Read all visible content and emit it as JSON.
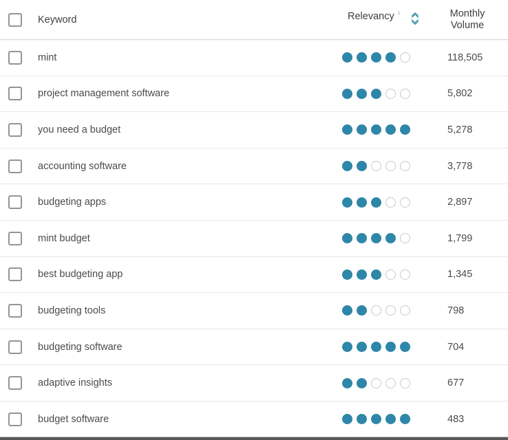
{
  "header": {
    "keyword_label": "Keyword",
    "relevancy_label": "Relevancy",
    "info_icon_glyph": "i",
    "sort_icon_name": "sort-chevrons-icon",
    "monthly_volume_line1": "Monthly",
    "monthly_volume_line2": "Volume"
  },
  "relevancy_max": 5,
  "colors": {
    "dot_filled": "#2e86a8",
    "dot_empty_border": "#c9c9c9",
    "sort_icon": "#2f8fa0",
    "text": "#4b4b4b"
  },
  "rows": [
    {
      "keyword": "mint",
      "relevancy": 4,
      "monthly_volume": "118,505"
    },
    {
      "keyword": "project management software",
      "relevancy": 3,
      "monthly_volume": "5,802"
    },
    {
      "keyword": "you need a budget",
      "relevancy": 5,
      "monthly_volume": "5,278"
    },
    {
      "keyword": "accounting software",
      "relevancy": 2,
      "monthly_volume": "3,778"
    },
    {
      "keyword": "budgeting apps",
      "relevancy": 3,
      "monthly_volume": "2,897"
    },
    {
      "keyword": "mint budget",
      "relevancy": 4,
      "monthly_volume": "1,799"
    },
    {
      "keyword": "best budgeting app",
      "relevancy": 3,
      "monthly_volume": "1,345"
    },
    {
      "keyword": "budgeting tools",
      "relevancy": 2,
      "monthly_volume": "798"
    },
    {
      "keyword": "budgeting software",
      "relevancy": 5,
      "monthly_volume": "704"
    },
    {
      "keyword": "adaptive insights",
      "relevancy": 2,
      "monthly_volume": "677"
    },
    {
      "keyword": "budget software",
      "relevancy": 5,
      "monthly_volume": "483"
    }
  ]
}
